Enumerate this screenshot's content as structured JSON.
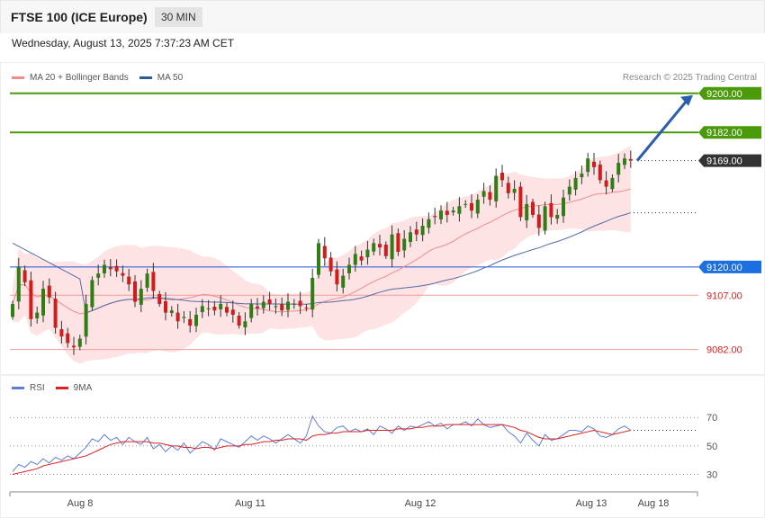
{
  "header": {
    "title": "FTSE 100 (ICE Europe)",
    "timeframe": "30 MIN"
  },
  "datetime": "Wednesday, August 13, 2025 7:37:23 AM CET",
  "legend_main": [
    {
      "label": "MA 20 + Bollinger Bands",
      "color": "#f28b8b"
    },
    {
      "label": "MA 50",
      "color": "#2d5b9a"
    }
  ],
  "credit": "Research © 2025 Trading Central",
  "legend_rsi": [
    {
      "label": "RSI",
      "color": "#5b7fd6"
    },
    {
      "label": "9MA",
      "color": "#e02020"
    }
  ],
  "chart_data": {
    "type": "candlestick",
    "x_labels": [
      "Aug 8",
      "Aug 11",
      "Aug 12",
      "Aug 13",
      "Aug 18"
    ],
    "y_range": [
      9071.5,
      9214
    ],
    "levels": [
      {
        "value": 9200.0,
        "label": "9200.00",
        "kind": "resistance"
      },
      {
        "value": 9182.0,
        "label": "9182.00",
        "kind": "resistance"
      },
      {
        "value": 9169.0,
        "label": "9169.00",
        "kind": "last"
      },
      {
        "value": 9120.0,
        "label": "9120.00",
        "kind": "pivot"
      },
      {
        "value": 9107.0,
        "label": "9107.00",
        "kind": "support"
      },
      {
        "value": 9082.0,
        "label": "9082.00",
        "kind": "support"
      }
    ],
    "forecast_arrow": {
      "from": 9169,
      "to": 9200
    },
    "candle_closes": [
      9103,
      9120,
      9113,
      9096,
      9099,
      9110,
      9106,
      9092,
      9088,
      9085,
      9083,
      9087,
      9103,
      9114,
      9117,
      9121,
      9119,
      9118,
      9116,
      9112,
      9104,
      9110,
      9117,
      9109,
      9103,
      9099,
      9100,
      9095,
      9097,
      9093,
      9098,
      9102,
      9101,
      9100,
      9103,
      9099,
      9098,
      9093,
      9095,
      9103,
      9101,
      9104,
      9103,
      9102,
      9100,
      9104,
      9103,
      9102,
      9101,
      9115,
      9131,
      9124,
      9118,
      9112,
      9116,
      9121,
      9126,
      9123,
      9128,
      9131,
      9129,
      9125,
      9135,
      9127,
      9133,
      9136,
      9135,
      9139,
      9142,
      9143,
      9146,
      9144,
      9146,
      9148,
      9149,
      9146,
      9151,
      9155,
      9151,
      9162,
      9160,
      9154,
      9156,
      9143,
      9149,
      9144,
      9138,
      9148,
      9143,
      9144,
      9152,
      9157,
      9161,
      9163,
      9170,
      9166,
      9160,
      9157,
      9161,
      9168,
      9170,
      9169
    ],
    "rsi": {
      "levels": [
        70,
        50,
        30
      ],
      "y_range": [
        24,
        79
      ],
      "rsi_values": [
        32,
        37,
        35,
        39,
        37,
        41,
        38,
        42,
        40,
        43,
        41,
        45,
        49,
        55,
        53,
        58,
        54,
        56,
        51,
        56,
        53,
        51,
        56,
        48,
        51,
        46,
        50,
        47,
        52,
        45,
        49,
        53,
        51,
        47,
        55,
        53,
        51,
        49,
        53,
        57,
        54,
        57,
        55,
        52,
        55,
        58,
        55,
        52,
        57,
        71,
        64,
        60,
        59,
        63,
        64,
        60,
        62,
        60,
        62,
        58,
        64,
        62,
        59,
        64,
        61,
        64,
        63,
        65,
        67,
        64,
        66,
        62,
        65,
        65,
        67,
        64,
        69,
        65,
        63,
        64,
        65,
        60,
        57,
        52,
        59,
        54,
        50,
        58,
        54,
        55,
        58,
        61,
        61,
        60,
        64,
        62,
        57,
        56,
        58,
        62,
        64,
        61
      ],
      "ma9_values": [
        30,
        31,
        32,
        33,
        34,
        36,
        37,
        38,
        39,
        40,
        41,
        42,
        43,
        45,
        47,
        49,
        51,
        52,
        53,
        53,
        53,
        53,
        53,
        52,
        52,
        51,
        50,
        50,
        49,
        49,
        48,
        49,
        49,
        48,
        49,
        50,
        50,
        50,
        51,
        51,
        52,
        53,
        53,
        54,
        54,
        55,
        55,
        55,
        54,
        57,
        58,
        58,
        59,
        59,
        60,
        60,
        60,
        60,
        61,
        61,
        61,
        61,
        61,
        62,
        62,
        62,
        63,
        63,
        64,
        64,
        64,
        65,
        65,
        65,
        65,
        65,
        65,
        65,
        65,
        65,
        65,
        64,
        63,
        61,
        60,
        58,
        56,
        55,
        55,
        55,
        56,
        57,
        58,
        59,
        60,
        61,
        60,
        59,
        58,
        59,
        60,
        61
      ]
    }
  }
}
